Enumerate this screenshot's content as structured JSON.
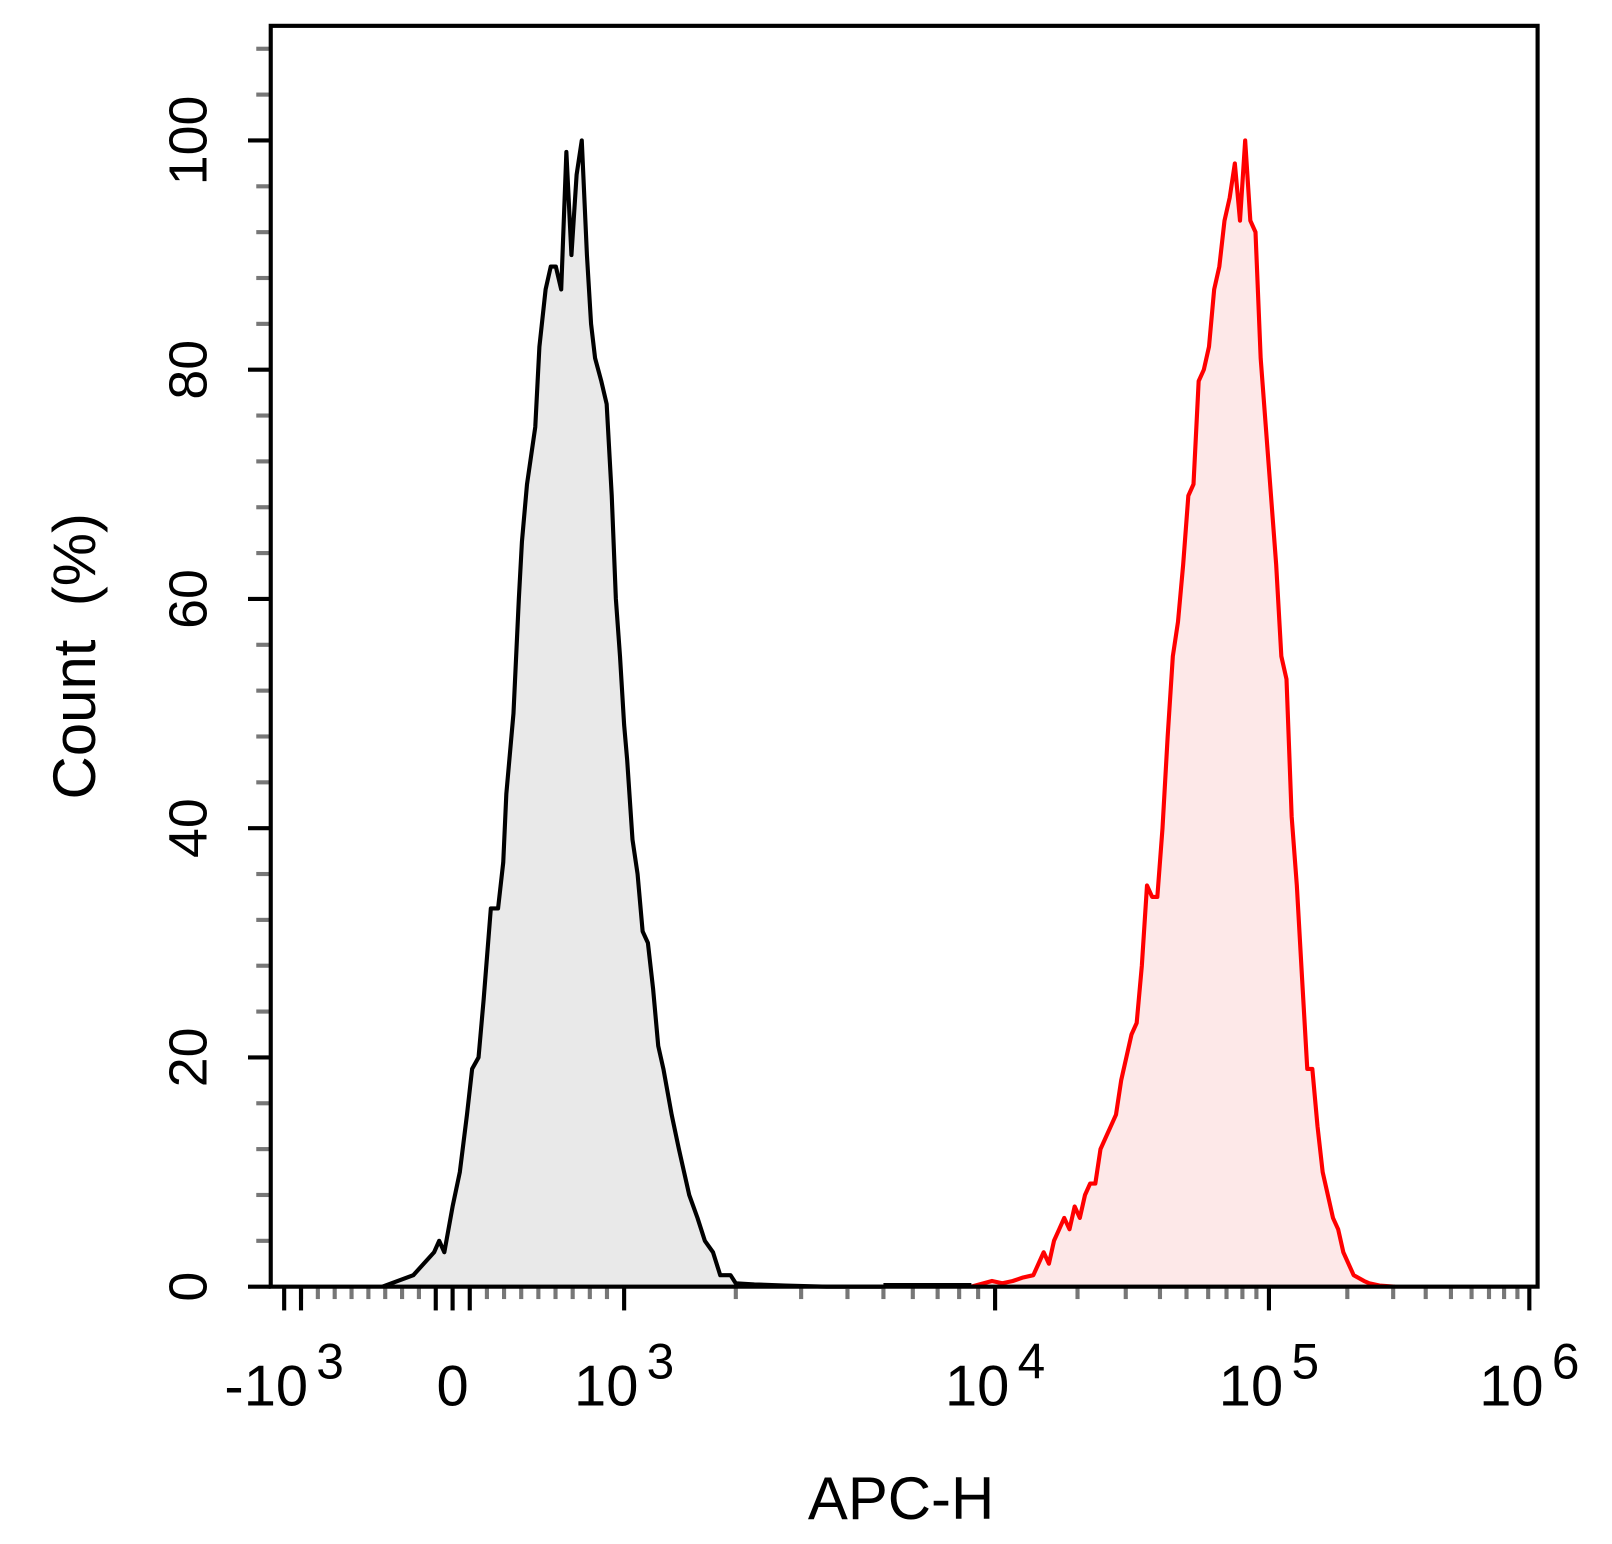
{
  "chart_data": {
    "type": "area",
    "title": "",
    "xlabel": "APC-H",
    "ylabel": "Count  (%)",
    "x_scale": "biexponential",
    "xlim": [
      -1000,
      1000000
    ],
    "ylim": [
      0,
      110
    ],
    "grid": false,
    "legend": "none",
    "x_ticks": [
      {
        "value": -1000,
        "base": "-10",
        "exp": "3"
      },
      {
        "value": 0,
        "base": "0",
        "exp": ""
      },
      {
        "value": 1000,
        "base": "10",
        "exp": "3"
      },
      {
        "value": 10000,
        "base": "10",
        "exp": "4"
      },
      {
        "value": 100000,
        "base": "10",
        "exp": "5"
      },
      {
        "value": 1000000,
        "base": "10",
        "exp": "6"
      }
    ],
    "y_ticks": [
      0,
      20,
      40,
      60,
      80,
      100
    ],
    "series": [
      {
        "color": "#000000",
        "fill": "#e9e9e9",
        "x": [
          -417,
          -233,
          -172,
          -110,
          -80,
          -49,
          0,
          42,
          84,
          114,
          151,
          181,
          223,
          265,
          295,
          313,
          355,
          386,
          404,
          434,
          482,
          506,
          542,
          572,
          602,
          633,
          663,
          693,
          723,
          753,
          783,
          807,
          831,
          867,
          898,
          928,
          952,
          976,
          1000,
          1019,
          1053,
          1087,
          1122,
          1159,
          1197,
          1236,
          1276,
          1343,
          1405,
          1451,
          1498,
          1577,
          1650,
          1736,
          1816,
          1875,
          1936,
          1999,
          2244,
          2720,
          3515,
          5000
        ],
        "y": [
          0,
          1,
          2,
          3,
          4,
          3,
          7,
          10,
          15,
          19,
          20,
          25,
          33,
          33,
          37,
          43,
          50,
          60,
          65,
          70,
          75,
          82,
          87,
          89,
          89,
          87,
          99,
          90,
          97,
          100,
          90,
          84,
          81,
          79,
          77,
          69,
          60,
          55,
          49,
          46,
          39,
          36,
          31,
          30,
          26,
          21,
          19,
          15,
          12,
          10,
          8,
          6,
          4,
          3,
          1,
          1,
          1,
          0.3,
          0.2,
          0.1,
          0,
          0
        ]
      },
      {
        "color": "#ff0000",
        "fill": "#fde8e8",
        "x": [
          8630,
          9810,
          10630,
          11600,
          12650,
          13790,
          14400,
          15050,
          15720,
          16410,
          17140,
          17890,
          18690,
          19530,
          20390,
          21300,
          22250,
          23230,
          24260,
          25340,
          26460,
          27640,
          28870,
          30150,
          31490,
          32890,
          34340,
          35870,
          37460,
          39130,
          40870,
          42680,
          44580,
          46550,
          48630,
          50790,
          53030,
          55390,
          57860,
          60410,
          63100,
          65910,
          68830,
          71880,
          75080,
          78410,
          81890,
          85530,
          89330,
          93290,
          97430,
          101800,
          106600,
          111600,
          116800,
          122300,
          128000,
          134000,
          140300,
          146800,
          153700,
          160800,
          168400,
          176200,
          184500,
          193100,
          202100,
          211500,
          231800,
          242600,
          265800,
          304900
        ],
        "y": [
          0,
          0.5,
          0.3,
          0.5,
          0.8,
          1,
          2,
          3,
          2,
          4,
          5,
          6,
          5,
          7,
          6,
          8,
          9,
          9,
          12,
          13,
          14,
          15,
          18,
          20,
          22,
          23,
          28,
          35,
          34,
          34,
          40,
          48,
          55,
          58,
          63,
          69,
          70,
          79,
          80,
          82,
          87,
          89,
          93,
          95,
          98,
          93,
          100,
          93,
          92,
          81,
          75,
          69,
          63,
          55,
          53,
          41,
          35,
          27,
          19,
          19,
          14,
          10,
          8,
          6,
          5,
          3,
          2,
          1,
          0.5,
          0.3,
          0.1,
          0
        ]
      }
    ]
  }
}
